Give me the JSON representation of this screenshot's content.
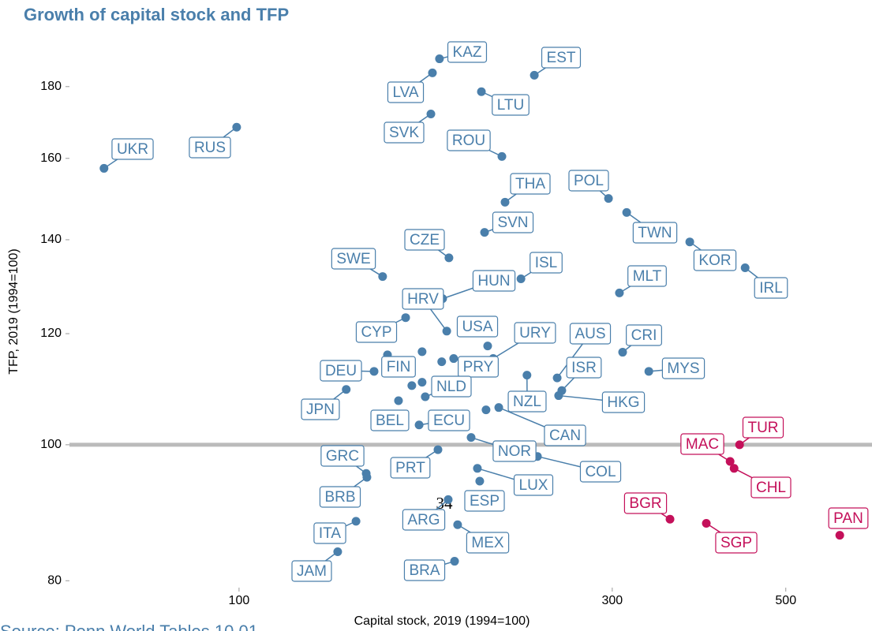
{
  "chart_data": {
    "type": "scatter",
    "title": "Growth of capital stock and TFP",
    "x_label": "Capital stock, 2019 (1994=100)",
    "y_label": "TFP, 2019 (1994=100)",
    "source": "Source: Penn World Tables 10.01",
    "annotation": "34",
    "x_log": true,
    "y_log": true,
    "xlim": [
      60.7,
      637
    ],
    "ylim": [
      79.1,
      196
    ],
    "xticks": [
      100,
      300,
      500
    ],
    "yticks": [
      80,
      100,
      120,
      140,
      160,
      180
    ],
    "hline": 100,
    "series": [
      {
        "color": "#4a7fab",
        "labels": [
          "UKR",
          "RUS",
          "KAZ",
          "LVA",
          "EST",
          "LTU",
          "SVK",
          "ROU",
          "THA",
          "POL",
          "TWN",
          "SVN",
          "KOR",
          "IRL",
          "CZE",
          "SWE",
          "ISL",
          "HUN",
          "MLT",
          "CYP",
          "HRV",
          "USA",
          "URY",
          "AUS",
          "CRI",
          "MYS",
          "FIN",
          "PRY",
          "DEU",
          "ISR",
          "NLD",
          "JPN",
          "NZL",
          "HKG",
          "BEL",
          "ECU",
          "CAN",
          "NOR",
          "GRC",
          "PRT",
          "COL",
          "LUX",
          "BRB",
          "ESP",
          "ARG",
          "ITA",
          "MEX",
          "JAM",
          "BRA",
          null,
          null,
          null,
          null,
          null
        ],
        "x": [
          67.2,
          99.3,
          180.4,
          176.7,
          238.5,
          204.1,
          175.9,
          216.8,
          218.8,
          296.7,
          313.0,
          206.0,
          376.9,
          443.6,
          185.5,
          152.6,
          229.3,
          182.1,
          306.4,
          163.3,
          184.3,
          207.9,
          211.3,
          255.1,
          309.3,
          334.1,
          154.8,
          188.1,
          148.8,
          258.6,
          173.0,
          137.1,
          233.4,
          256.2,
          159.9,
          169.9,
          214.8,
          198.0,
          145.4,
          179.6,
          240.7,
          201.7,
          145.7,
          203.1,
          185.1,
          141.1,
          190.3,
          133.7,
          188.6,
          166.3,
          171.4,
          206.9,
          171.4,
          181.6
        ],
        "values": [
          157.4,
          168.4,
          188.4,
          184.1,
          183.4,
          178.5,
          172.1,
          160.5,
          148.9,
          149.8,
          146.4,
          141.7,
          139.5,
          133.7,
          135.9,
          131.8,
          131.3,
          127.1,
          128.3,
          123.2,
          120.5,
          117.6,
          115.2,
          111.6,
          116.4,
          112.8,
          115.9,
          115.2,
          112.8,
          109.3,
          108.2,
          109.5,
          112.1,
          108.4,
          107.5,
          103.3,
          106.3,
          101.2,
          95.4,
          99.2,
          98.1,
          96.2,
          94.8,
          94.2,
          91.4,
          88.2,
          87.7,
          83.9,
          82.6,
          110.2,
          110.8,
          105.9,
          116.5,
          114.6
        ]
      },
      {
        "color": "#c4105a",
        "labels": [
          "TUR",
          "MAC",
          "CHL",
          "BGR",
          "SGP",
          "PAN"
        ],
        "x": [
          436.4,
          424.4,
          429.4,
          355.6,
          395.7,
          586.1
        ],
        "values": [
          100.0,
          97.3,
          96.2,
          88.5,
          87.9,
          86.2
        ]
      }
    ]
  }
}
